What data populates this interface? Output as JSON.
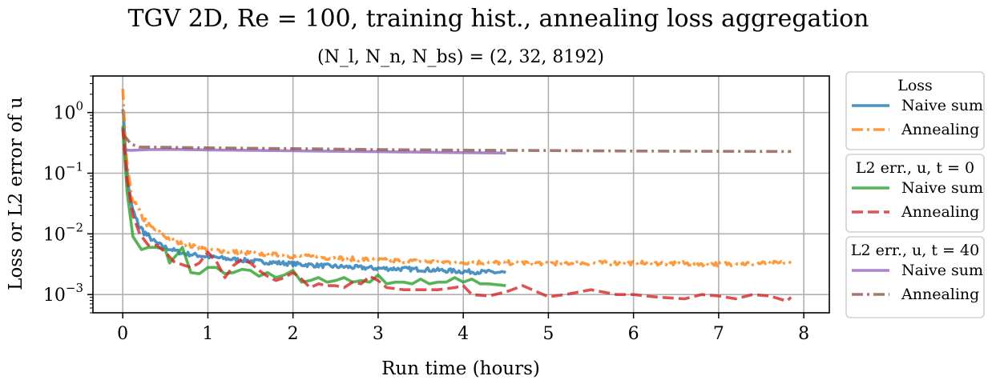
{
  "chart_data": {
    "type": "line",
    "title": "TGV 2D, Re = 100, training hist., annealing loss aggregation",
    "subtitle": "(N_l, N_n, N_bs) = (2, 32, 8192)",
    "xlabel": "Run time (hours)",
    "ylabel": "Loss or L2 error of u",
    "xlim": [
      -0.35,
      8.3
    ],
    "ylim": [
      0.0005,
      4
    ],
    "yscale": "log",
    "grid": true,
    "xticks": [
      "0",
      "1",
      "2",
      "3",
      "4",
      "5",
      "6",
      "7",
      "8"
    ],
    "yticks": [
      {
        "base": "10",
        "exp": "0",
        "value": 1
      },
      {
        "base": "10",
        "exp": "−1",
        "value": 0.1
      },
      {
        "base": "10",
        "exp": "−2",
        "value": 0.01
      },
      {
        "base": "10",
        "exp": "−3",
        "value": 0.001
      }
    ],
    "legend_groups": [
      {
        "title": "Loss",
        "entries": [
          "Naive sum",
          "Annealing"
        ]
      },
      {
        "title": "L2 err., u, t = 0",
        "entries": [
          "Naive sum",
          "Annealing"
        ]
      },
      {
        "title": "L2 err., u, t = 40",
        "entries": [
          "Naive sum",
          "Annealing"
        ]
      }
    ],
    "legend_position": "outside-right",
    "series": [
      {
        "group": "Loss",
        "label": "Naive sum",
        "color": "#1f77b4",
        "dash": "solid",
        "noisy": true,
        "x": [
          0,
          0.02,
          0.04,
          0.07,
          0.1,
          0.15,
          0.2,
          0.3,
          0.4,
          0.5,
          0.7,
          1.0,
          1.3,
          1.6,
          2.0,
          2.5,
          3.0,
          3.5,
          4.0,
          4.5
        ],
        "y": [
          1.3,
          0.5,
          0.15,
          0.06,
          0.03,
          0.018,
          0.013,
          0.009,
          0.007,
          0.006,
          0.0048,
          0.0042,
          0.0038,
          0.0035,
          0.0032,
          0.0029,
          0.0027,
          0.0026,
          0.0024,
          0.0023
        ]
      },
      {
        "group": "Loss",
        "label": "Annealing",
        "color": "#ff7f0e",
        "dash": "dashdot",
        "noisy": true,
        "x": [
          0,
          0.01,
          0.03,
          0.06,
          0.1,
          0.15,
          0.2,
          0.3,
          0.5,
          0.7,
          1.0,
          1.5,
          2.0,
          2.5,
          3.0,
          3.5,
          4.0,
          5.0,
          6.0,
          7.0,
          7.85
        ],
        "y": [
          2.3,
          1.2,
          0.3,
          0.1,
          0.045,
          0.03,
          0.022,
          0.014,
          0.009,
          0.0068,
          0.0055,
          0.0048,
          0.0043,
          0.004,
          0.0037,
          0.0035,
          0.0034,
          0.0033,
          0.0033,
          0.0032,
          0.0033
        ]
      },
      {
        "group": "L2 err., u, t = 0",
        "label": "Naive sum",
        "color": "#2ca02c",
        "dash": "solid",
        "noisy": false,
        "x": [
          0,
          0.05,
          0.12,
          0.22,
          0.3,
          0.4,
          0.5,
          0.55,
          0.65,
          0.7,
          0.8,
          0.9,
          1.0,
          1.1,
          1.2,
          1.3,
          1.4,
          1.5,
          1.6,
          1.7,
          1.8,
          1.9,
          2.0,
          2.1,
          2.2,
          2.3,
          2.4,
          2.5,
          2.6,
          2.7,
          2.8,
          2.9,
          3.0,
          3.1,
          3.2,
          3.3,
          3.4,
          3.5,
          3.6,
          3.7,
          3.8,
          3.9,
          4.0,
          4.1,
          4.2,
          4.3,
          4.5
        ],
        "y": [
          0.6,
          0.05,
          0.009,
          0.0055,
          0.006,
          0.006,
          0.0055,
          0.0033,
          0.0048,
          0.006,
          0.0023,
          0.0022,
          0.0028,
          0.0028,
          0.0022,
          0.0023,
          0.0026,
          0.0025,
          0.002,
          0.0023,
          0.0019,
          0.0021,
          0.0025,
          0.0016,
          0.0017,
          0.0019,
          0.0016,
          0.0017,
          0.0019,
          0.0016,
          0.0017,
          0.0016,
          0.0021,
          0.0015,
          0.0016,
          0.0016,
          0.0015,
          0.0018,
          0.0015,
          0.0016,
          0.0016,
          0.0019,
          0.0016,
          0.0018,
          0.0015,
          0.0015,
          0.0014
        ]
      },
      {
        "group": "L2 err., u, t = 0",
        "label": "Annealing",
        "color": "#d62728",
        "dash": "dashed",
        "noisy": false,
        "x": [
          0,
          0.05,
          0.12,
          0.2,
          0.3,
          0.4,
          0.5,
          0.6,
          0.7,
          0.8,
          0.9,
          1.0,
          1.1,
          1.2,
          1.3,
          1.4,
          1.5,
          1.6,
          1.7,
          1.8,
          1.9,
          2.0,
          2.1,
          2.2,
          2.3,
          2.4,
          2.5,
          2.6,
          2.7,
          2.8,
          2.9,
          3.0,
          3.1,
          3.3,
          3.5,
          3.7,
          3.9,
          4.0,
          4.1,
          4.3,
          4.5,
          4.7,
          5.0,
          5.2,
          5.5,
          5.8,
          6.0,
          6.3,
          6.6,
          6.8,
          7.0,
          7.2,
          7.4,
          7.6,
          7.8,
          7.85
        ],
        "y": [
          0.55,
          0.08,
          0.02,
          0.01,
          0.0065,
          0.0065,
          0.005,
          0.0035,
          0.0031,
          0.0028,
          0.0033,
          0.005,
          0.0035,
          0.0019,
          0.003,
          0.0038,
          0.0033,
          0.0025,
          0.002,
          0.0017,
          0.0019,
          0.0023,
          0.0018,
          0.0013,
          0.0015,
          0.0014,
          0.0014,
          0.0013,
          0.0016,
          0.0015,
          0.002,
          0.0017,
          0.0013,
          0.0012,
          0.0012,
          0.0012,
          0.0013,
          0.0014,
          0.001,
          0.00095,
          0.0011,
          0.0014,
          0.00092,
          0.001,
          0.0012,
          0.001,
          0.001,
          0.0009,
          0.00085,
          0.001,
          0.00095,
          0.00085,
          0.001,
          0.00095,
          0.00078,
          0.0009
        ]
      },
      {
        "group": "L2 err., u, t = 40",
        "label": "Naive sum",
        "color": "#9467bd",
        "dash": "solid",
        "noisy": false,
        "x": [
          0,
          0.05,
          0.1,
          0.3,
          0.6,
          1.0,
          1.5,
          2.0,
          2.5,
          3.0,
          3.5,
          4.0,
          4.5
        ],
        "y": [
          0.25,
          0.24,
          0.238,
          0.245,
          0.247,
          0.242,
          0.238,
          0.234,
          0.23,
          0.226,
          0.222,
          0.218,
          0.215
        ]
      },
      {
        "group": "L2 err., u, t = 40",
        "label": "Annealing",
        "color": "#8c564b",
        "dash": "dashdot",
        "noisy": false,
        "x": [
          0,
          0.1,
          0.2,
          0.4,
          0.7,
          1.0,
          2.0,
          3.0,
          4.0,
          5.0,
          6.0,
          7.0,
          7.85
        ],
        "y": [
          0.45,
          0.3,
          0.27,
          0.268,
          0.265,
          0.262,
          0.254,
          0.245,
          0.24,
          0.236,
          0.232,
          0.23,
          0.228
        ]
      }
    ]
  }
}
